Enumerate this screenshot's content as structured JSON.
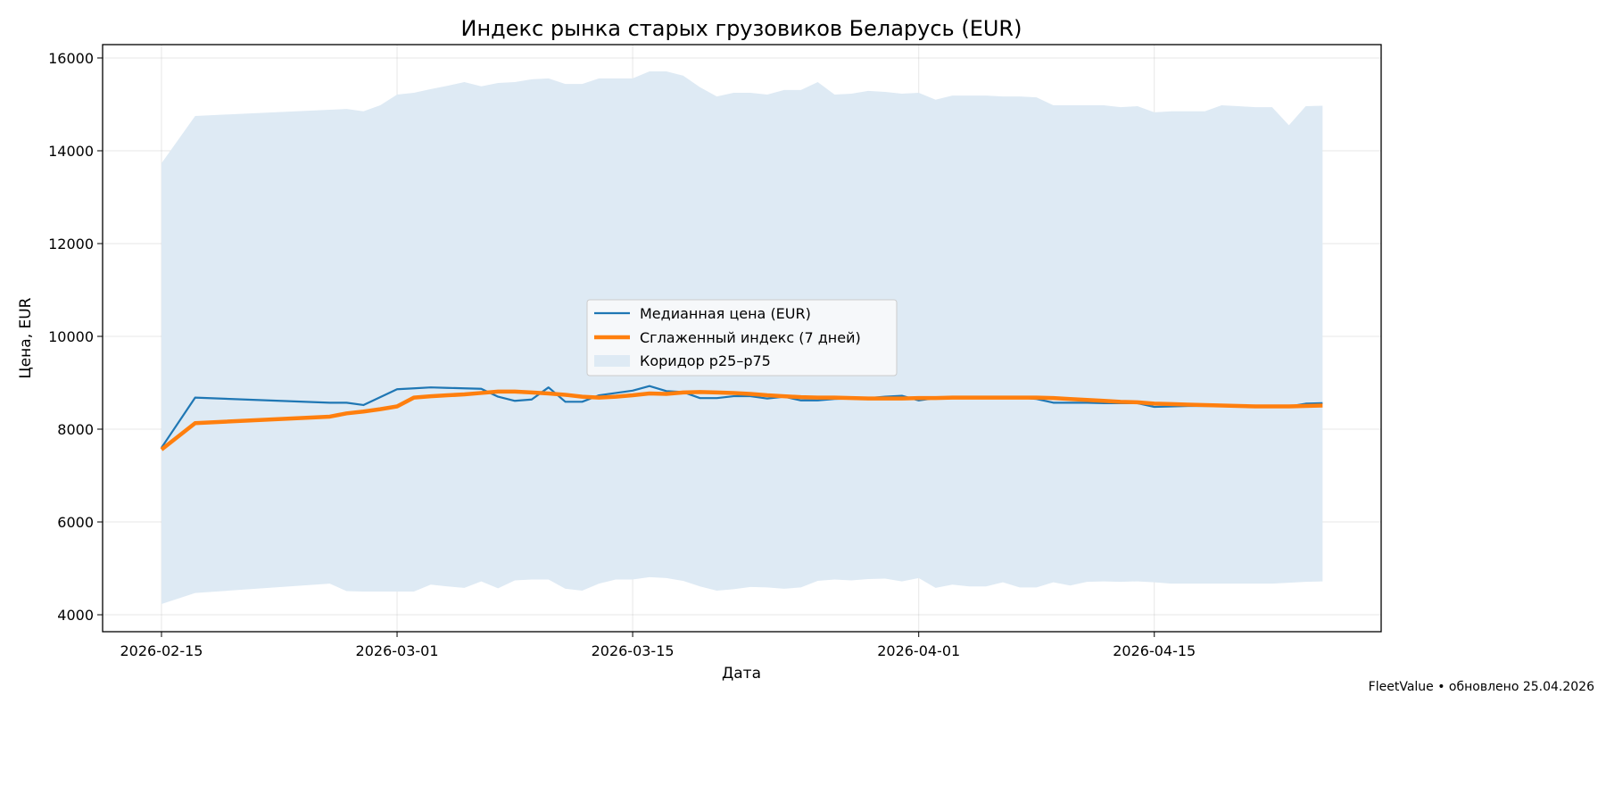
{
  "chart_data": {
    "type": "line",
    "title": "Индекс рынка старых грузовиков Беларусь (EUR)",
    "xlabel": "Дата",
    "ylabel": "Цена, EUR",
    "xlim": [
      "2026-02-11",
      "2026-04-28"
    ],
    "ylim": [
      3635,
      16288
    ],
    "x_ticks": [
      "2026-02-15",
      "2026-03-01",
      "2026-03-15",
      "2026-04-01",
      "2026-04-15"
    ],
    "y_ticks": [
      4000,
      6000,
      8000,
      10000,
      12000,
      14000,
      16000
    ],
    "grid": true,
    "legend_placement": "center",
    "x": [
      "2026-02-15",
      "2026-02-17",
      "2026-02-25",
      "2026-02-26",
      "2026-02-27",
      "2026-02-28",
      "2026-03-01",
      "2026-03-02",
      "2026-03-03",
      "2026-03-04",
      "2026-03-05",
      "2026-03-06",
      "2026-03-07",
      "2026-03-08",
      "2026-03-09",
      "2026-03-10",
      "2026-03-11",
      "2026-03-12",
      "2026-03-13",
      "2026-03-14",
      "2026-03-15",
      "2026-03-16",
      "2026-03-17",
      "2026-03-18",
      "2026-03-19",
      "2026-03-20",
      "2026-03-21",
      "2026-03-22",
      "2026-03-23",
      "2026-03-24",
      "2026-03-25",
      "2026-03-26",
      "2026-03-27",
      "2026-03-28",
      "2026-03-29",
      "2026-03-30",
      "2026-03-31",
      "2026-04-01",
      "2026-04-02",
      "2026-04-03",
      "2026-04-04",
      "2026-04-05",
      "2026-04-06",
      "2026-04-07",
      "2026-04-08",
      "2026-04-09",
      "2026-04-10",
      "2026-04-11",
      "2026-04-12",
      "2026-04-13",
      "2026-04-14",
      "2026-04-15",
      "2026-04-16",
      "2026-04-17",
      "2026-04-18",
      "2026-04-19",
      "2026-04-20",
      "2026-04-21",
      "2026-04-22",
      "2026-04-23",
      "2026-04-24",
      "2026-04-25"
    ],
    "series": [
      {
        "name": "Медианная цена (EUR)",
        "color": "#1f77b4",
        "values": [
          7600,
          8680,
          8570,
          8570,
          8520,
          8690,
          8860,
          8880,
          8900,
          8890,
          8880,
          8870,
          8700,
          8610,
          8640,
          8900,
          8590,
          8590,
          8730,
          8780,
          8830,
          8930,
          8820,
          8800,
          8670,
          8670,
          8710,
          8710,
          8660,
          8700,
          8620,
          8620,
          8650,
          8660,
          8670,
          8700,
          8720,
          8620,
          8670,
          8680,
          8680,
          8690,
          8680,
          8680,
          8650,
          8570,
          8570,
          8570,
          8560,
          8560,
          8560,
          8480,
          8490,
          8500,
          8500,
          8500,
          8490,
          8480,
          8480,
          8490,
          8550,
          8560
        ]
      },
      {
        "name": "Сглаженный индекс (7 дней)",
        "color": "#ff7f0e",
        "values": [
          7560,
          8130,
          8270,
          8340,
          8380,
          8430,
          8490,
          8680,
          8710,
          8730,
          8750,
          8780,
          8810,
          8810,
          8790,
          8770,
          8740,
          8700,
          8680,
          8700,
          8730,
          8770,
          8760,
          8790,
          8800,
          8790,
          8780,
          8760,
          8730,
          8710,
          8690,
          8680,
          8680,
          8670,
          8660,
          8660,
          8660,
          8670,
          8670,
          8680,
          8680,
          8680,
          8680,
          8680,
          8680,
          8670,
          8650,
          8630,
          8610,
          8590,
          8580,
          8550,
          8540,
          8530,
          8520,
          8510,
          8500,
          8490,
          8490,
          8490,
          8500,
          8510
        ]
      }
    ],
    "band": {
      "name": "Коридор p25–p75",
      "color": "#deeaf4",
      "lower": [
        4230,
        4470,
        4670,
        4510,
        4500,
        4500,
        4500,
        4500,
        4650,
        4610,
        4580,
        4720,
        4570,
        4740,
        4760,
        4760,
        4560,
        4520,
        4670,
        4760,
        4760,
        4810,
        4790,
        4730,
        4610,
        4520,
        4550,
        4600,
        4590,
        4560,
        4590,
        4730,
        4760,
        4740,
        4770,
        4780,
        4720,
        4790,
        4580,
        4650,
        4610,
        4610,
        4700,
        4590,
        4590,
        4700,
        4630,
        4710,
        4720,
        4710,
        4720,
        4700,
        4670,
        4670,
        4670,
        4670,
        4670,
        4670,
        4670,
        4690,
        4710,
        4720
      ],
      "upper": [
        13730,
        14750,
        14885,
        14900,
        14850,
        14980,
        15210,
        15250,
        15330,
        15400,
        15480,
        15390,
        15460,
        15480,
        15540,
        15560,
        15440,
        15440,
        15560,
        15560,
        15560,
        15710,
        15710,
        15620,
        15370,
        15170,
        15250,
        15250,
        15210,
        15310,
        15310,
        15480,
        15210,
        15230,
        15290,
        15270,
        15230,
        15250,
        15100,
        15190,
        15190,
        15190,
        15170,
        15170,
        15150,
        14980,
        14980,
        14980,
        14980,
        14940,
        14960,
        14830,
        14850,
        14850,
        14850,
        14980,
        14960,
        14940,
        14940,
        14550,
        14960,
        14970
      ]
    }
  },
  "footer": "FleetValue • обновлено 25.04.2026"
}
